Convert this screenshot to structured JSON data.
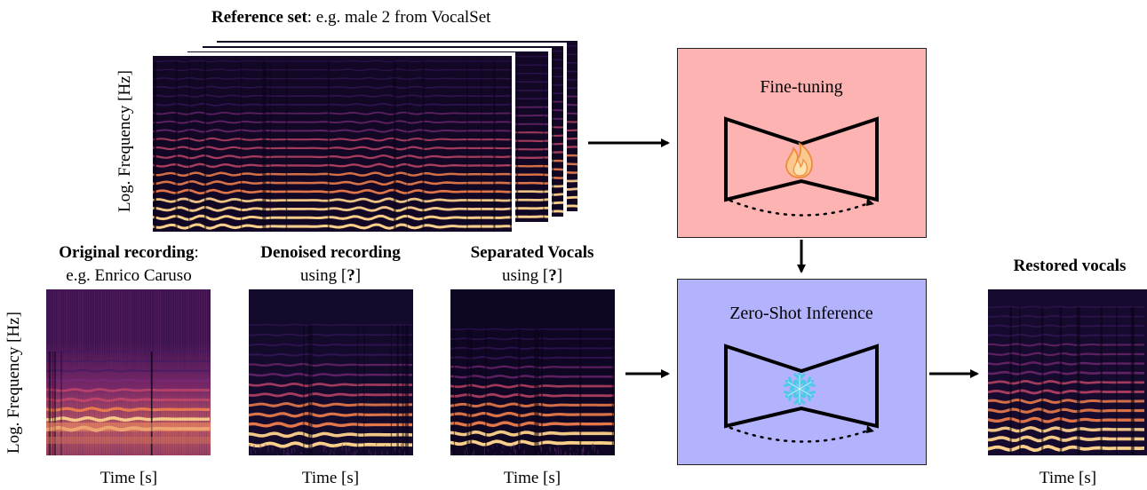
{
  "reference": {
    "title_bold": "Reference set",
    "title_rest": ": e.g. male 2 from VocalSet",
    "ylabel": "Log. Frequency [Hz]"
  },
  "original": {
    "title_bold": "Original recording",
    "title_rest": ":",
    "subtitle": "e.g. Enrico Caruso",
    "xlabel": "Time [s]"
  },
  "denoised": {
    "title_bold": "Denoised recording",
    "subtitle_pre": "using [",
    "subtitle_cite": "?",
    "subtitle_post": "]",
    "xlabel": "Time [s]"
  },
  "separated": {
    "title_bold": "Separated Vocals",
    "subtitle_pre": "using [",
    "subtitle_cite": "?",
    "subtitle_post": "]",
    "xlabel": "Time [s]"
  },
  "restored": {
    "title_bold": "Restored vocals",
    "xlabel": "Time [s]"
  },
  "bottom_ylabel": "Log. Frequency [Hz]",
  "finetune": {
    "label": "Fine-tuning",
    "color": "#fdb3b1",
    "icon": "fire-icon"
  },
  "zeroshot": {
    "label": "Zero-Shot Inference",
    "color": "#b3b3fd",
    "icon": "snowflake-icon"
  }
}
